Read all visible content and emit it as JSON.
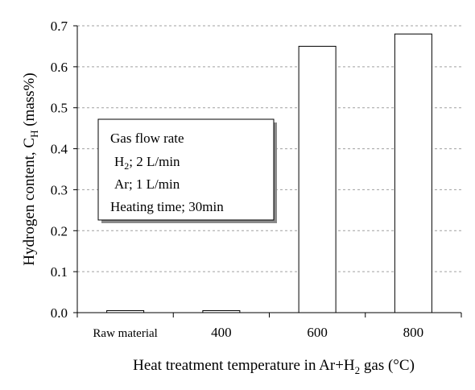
{
  "chart_data": {
    "type": "bar",
    "categories": [
      "Raw material",
      "400",
      "600",
      "800"
    ],
    "values": [
      0.005,
      0.005,
      0.65,
      0.68
    ],
    "ylim": [
      0,
      0.7
    ],
    "yticks": [
      "0.0",
      "0.1",
      "0.2",
      "0.3",
      "0.4",
      "0.5",
      "0.6",
      "0.7"
    ],
    "ytick_values": [
      0,
      0.1,
      0.2,
      0.3,
      0.4,
      0.5,
      0.6,
      0.7
    ],
    "grid": "horizontal dashed",
    "xlabel": {
      "prefix": "Heat treatment temperature in Ar+H",
      "sub": "2",
      "suffix": " gas (°C)"
    },
    "ylabel": {
      "prefix": "Hydrogen content, C",
      "sub": "H",
      "suffix": " (mass%)"
    },
    "annotation": {
      "line1": "Gas flow rate",
      "line2_prefix": "H",
      "line2_sub": "2",
      "line2_suffix": "; 2 L/min",
      "line3": "Ar; 1 L/min",
      "line4": "Heating time; 30min"
    },
    "colors": {
      "bar_fill": "#ffffff",
      "bar_stroke": "#000000",
      "grid": "#a0a0a0"
    }
  }
}
